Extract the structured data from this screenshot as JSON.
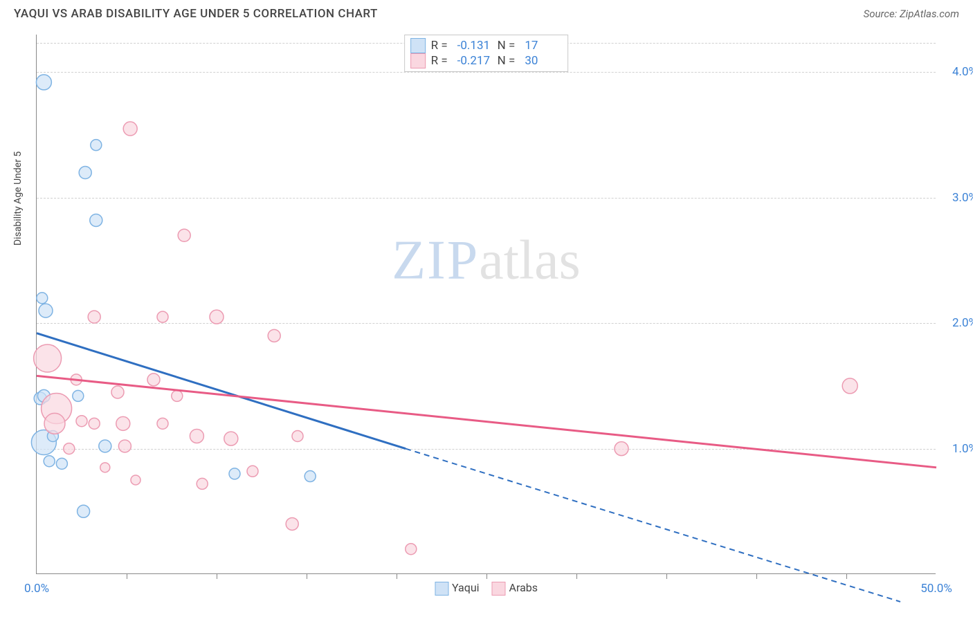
{
  "title": "YAQUI VS ARAB DISABILITY AGE UNDER 5 CORRELATION CHART",
  "source": "Source: ZipAtlas.com",
  "ylabel": "Disability Age Under 5",
  "watermark": {
    "part1": "ZIP",
    "part2": "atlas"
  },
  "chart": {
    "type": "scatter",
    "xlim": [
      0,
      50
    ],
    "ylim": [
      0,
      4.3
    ],
    "x_ticks_labeled": [
      {
        "pos": 0,
        "label": "0.0%"
      },
      {
        "pos": 50,
        "label": "50.0%"
      }
    ],
    "x_ticks_minor": [
      5,
      10,
      15,
      20,
      25,
      30,
      35,
      40,
      45
    ],
    "y_ticks": [
      {
        "pos": 1.0,
        "label": "1.0%"
      },
      {
        "pos": 2.0,
        "label": "2.0%"
      },
      {
        "pos": 3.0,
        "label": "3.0%"
      },
      {
        "pos": 4.0,
        "label": "4.0%"
      }
    ],
    "grid_color": "#d0d0d0",
    "background_color": "#ffffff",
    "series": [
      {
        "name": "Yaqui",
        "fill": "#cfe2f6",
        "stroke": "#7eb3e3",
        "fill_opacity": 0.7,
        "R": "-0.131",
        "N": "17",
        "trend": {
          "solid": {
            "x1": 0,
            "y1": 1.92,
            "x2": 20.5,
            "y2": 1.0
          },
          "dashed": {
            "x1": 20.5,
            "y1": 1.0,
            "x2": 48,
            "y2": -0.22
          },
          "color": "#2f6fc1",
          "width": 3
        },
        "points": [
          {
            "x": 0.4,
            "y": 3.92,
            "r": 11
          },
          {
            "x": 2.7,
            "y": 3.2,
            "r": 9
          },
          {
            "x": 3.3,
            "y": 3.42,
            "r": 8
          },
          {
            "x": 3.3,
            "y": 2.82,
            "r": 9
          },
          {
            "x": 0.3,
            "y": 2.2,
            "r": 8
          },
          {
            "x": 0.5,
            "y": 2.1,
            "r": 10
          },
          {
            "x": 0.2,
            "y": 1.4,
            "r": 9
          },
          {
            "x": 0.4,
            "y": 1.42,
            "r": 9
          },
          {
            "x": 0.4,
            "y": 1.05,
            "r": 18
          },
          {
            "x": 0.9,
            "y": 1.1,
            "r": 8
          },
          {
            "x": 0.7,
            "y": 0.9,
            "r": 8
          },
          {
            "x": 1.4,
            "y": 0.88,
            "r": 8
          },
          {
            "x": 3.8,
            "y": 1.02,
            "r": 9
          },
          {
            "x": 2.6,
            "y": 0.5,
            "r": 9
          },
          {
            "x": 11.0,
            "y": 0.8,
            "r": 8
          },
          {
            "x": 15.2,
            "y": 0.78,
            "r": 8
          },
          {
            "x": 2.3,
            "y": 1.42,
            "r": 8
          }
        ]
      },
      {
        "name": "Arabs",
        "fill": "#fad7e0",
        "stroke": "#ec9bb2",
        "fill_opacity": 0.7,
        "R": "-0.217",
        "N": "30",
        "trend": {
          "solid": {
            "x1": 0,
            "y1": 1.58,
            "x2": 50,
            "y2": 0.85
          },
          "dashed": null,
          "color": "#e85b85",
          "width": 3
        },
        "points": [
          {
            "x": 5.2,
            "y": 3.55,
            "r": 10
          },
          {
            "x": 8.2,
            "y": 2.7,
            "r": 9
          },
          {
            "x": 3.2,
            "y": 2.05,
            "r": 9
          },
          {
            "x": 7.0,
            "y": 2.05,
            "r": 8
          },
          {
            "x": 10.0,
            "y": 2.05,
            "r": 10
          },
          {
            "x": 13.2,
            "y": 1.9,
            "r": 9
          },
          {
            "x": 6.5,
            "y": 1.55,
            "r": 9
          },
          {
            "x": 0.6,
            "y": 1.72,
            "r": 20
          },
          {
            "x": 1.1,
            "y": 1.32,
            "r": 22
          },
          {
            "x": 1.0,
            "y": 1.2,
            "r": 15
          },
          {
            "x": 4.5,
            "y": 1.45,
            "r": 9
          },
          {
            "x": 7.8,
            "y": 1.42,
            "r": 8
          },
          {
            "x": 2.5,
            "y": 1.22,
            "r": 8
          },
          {
            "x": 3.2,
            "y": 1.2,
            "r": 8
          },
          {
            "x": 4.8,
            "y": 1.2,
            "r": 10
          },
          {
            "x": 7.0,
            "y": 1.2,
            "r": 8
          },
          {
            "x": 4.9,
            "y": 1.02,
            "r": 9
          },
          {
            "x": 8.9,
            "y": 1.1,
            "r": 10
          },
          {
            "x": 10.8,
            "y": 1.08,
            "r": 10
          },
          {
            "x": 14.5,
            "y": 1.1,
            "r": 8
          },
          {
            "x": 5.5,
            "y": 0.75,
            "r": 7
          },
          {
            "x": 9.2,
            "y": 0.72,
            "r": 8
          },
          {
            "x": 12.0,
            "y": 0.82,
            "r": 8
          },
          {
            "x": 14.2,
            "y": 0.4,
            "r": 9
          },
          {
            "x": 20.8,
            "y": 0.2,
            "r": 8
          },
          {
            "x": 32.5,
            "y": 1.0,
            "r": 10
          },
          {
            "x": 45.2,
            "y": 1.5,
            "r": 11
          },
          {
            "x": 2.2,
            "y": 1.55,
            "r": 8
          },
          {
            "x": 1.8,
            "y": 1.0,
            "r": 8
          },
          {
            "x": 3.8,
            "y": 0.85,
            "r": 7
          }
        ]
      }
    ],
    "legend_bottom": [
      {
        "label": "Yaqui",
        "fill": "#cfe2f6",
        "stroke": "#7eb3e3"
      },
      {
        "label": "Arabs",
        "fill": "#fad7e0",
        "stroke": "#ec9bb2"
      }
    ]
  }
}
